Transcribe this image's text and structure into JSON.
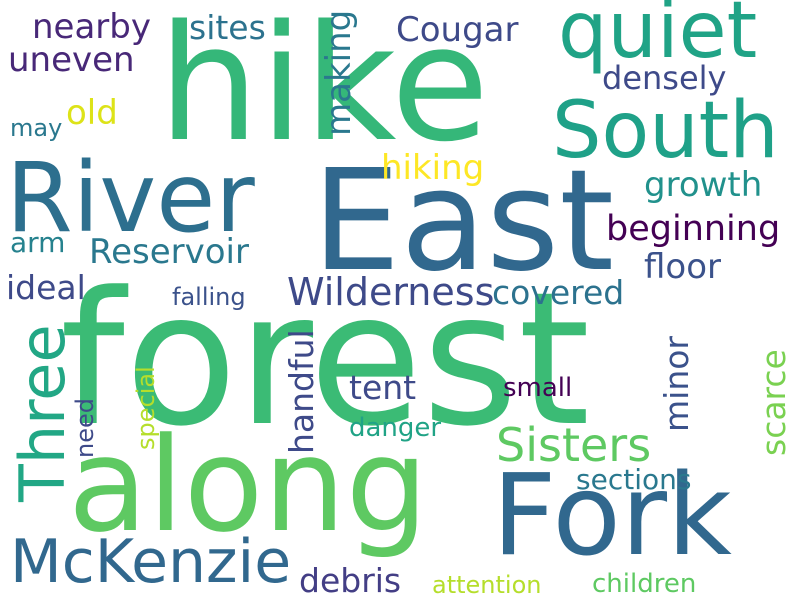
{
  "words": {
    "forest": {
      "text": "forest",
      "color": "#3bbb75"
    },
    "hike": {
      "text": "hike",
      "color": "#35b779"
    },
    "east": {
      "text": "East",
      "color": "#31688e"
    },
    "along": {
      "text": "along",
      "color": "#5ec962"
    },
    "fork": {
      "text": "Fork",
      "color": "#31688e"
    },
    "river": {
      "text": "River",
      "color": "#2d6f8e"
    },
    "quiet": {
      "text": "quiet",
      "color": "#20a386"
    },
    "south": {
      "text": "South",
      "color": "#1fa188"
    },
    "three": {
      "text": "Three",
      "color": "#22a785"
    },
    "mckenzie": {
      "text": "McKenzie",
      "color": "#31688e"
    },
    "sisters": {
      "text": "Sisters",
      "color": "#5ec962"
    },
    "wilderness": {
      "text": "Wilderness",
      "color": "#3e4a89"
    },
    "reservoir": {
      "text": "Reservoir",
      "color": "#2a788e"
    },
    "covered": {
      "text": "covered",
      "color": "#2c728e"
    },
    "beginning": {
      "text": "beginning",
      "color": "#440154"
    },
    "growth": {
      "text": "growth",
      "color": "#21918c"
    },
    "floor": {
      "text": "floor",
      "color": "#3b528b"
    },
    "densely": {
      "text": "densely",
      "color": "#3e4a89"
    },
    "cougar": {
      "text": "Cougar",
      "color": "#3e4a89"
    },
    "nearby": {
      "text": "nearby",
      "color": "#482878"
    },
    "uneven": {
      "text": "uneven",
      "color": "#482878"
    },
    "sites": {
      "text": "sites",
      "color": "#2c728e"
    },
    "making": {
      "text": "making",
      "color": "#2a788e"
    },
    "old": {
      "text": "old",
      "color": "#dde318"
    },
    "may": {
      "text": "may",
      "color": "#2a788e"
    },
    "hiking": {
      "text": "hiking",
      "color": "#fde725"
    },
    "arm": {
      "text": "arm",
      "color": "#26828e"
    },
    "ideal": {
      "text": "ideal",
      "color": "#3e4a89"
    },
    "falling": {
      "text": "falling",
      "color": "#3b528b"
    },
    "tent": {
      "text": "tent",
      "color": "#3e4a89"
    },
    "small": {
      "text": "small",
      "color": "#440154"
    },
    "danger": {
      "text": "danger",
      "color": "#20a386"
    },
    "minor": {
      "text": "minor",
      "color": "#3b528b"
    },
    "scarce": {
      "text": "scarce",
      "color": "#7ad151"
    },
    "handful": {
      "text": "handful",
      "color": "#3e4a89"
    },
    "special": {
      "text": "special",
      "color": "#b5de2b"
    },
    "need": {
      "text": "need",
      "color": "#3e4a89"
    },
    "sections": {
      "text": "sections",
      "color": "#2a788e"
    },
    "debris": {
      "text": "debris",
      "color": "#433e85"
    },
    "attention": {
      "text": "attention",
      "color": "#b5de2b"
    },
    "children": {
      "text": "children",
      "color": "#5ec962"
    }
  }
}
